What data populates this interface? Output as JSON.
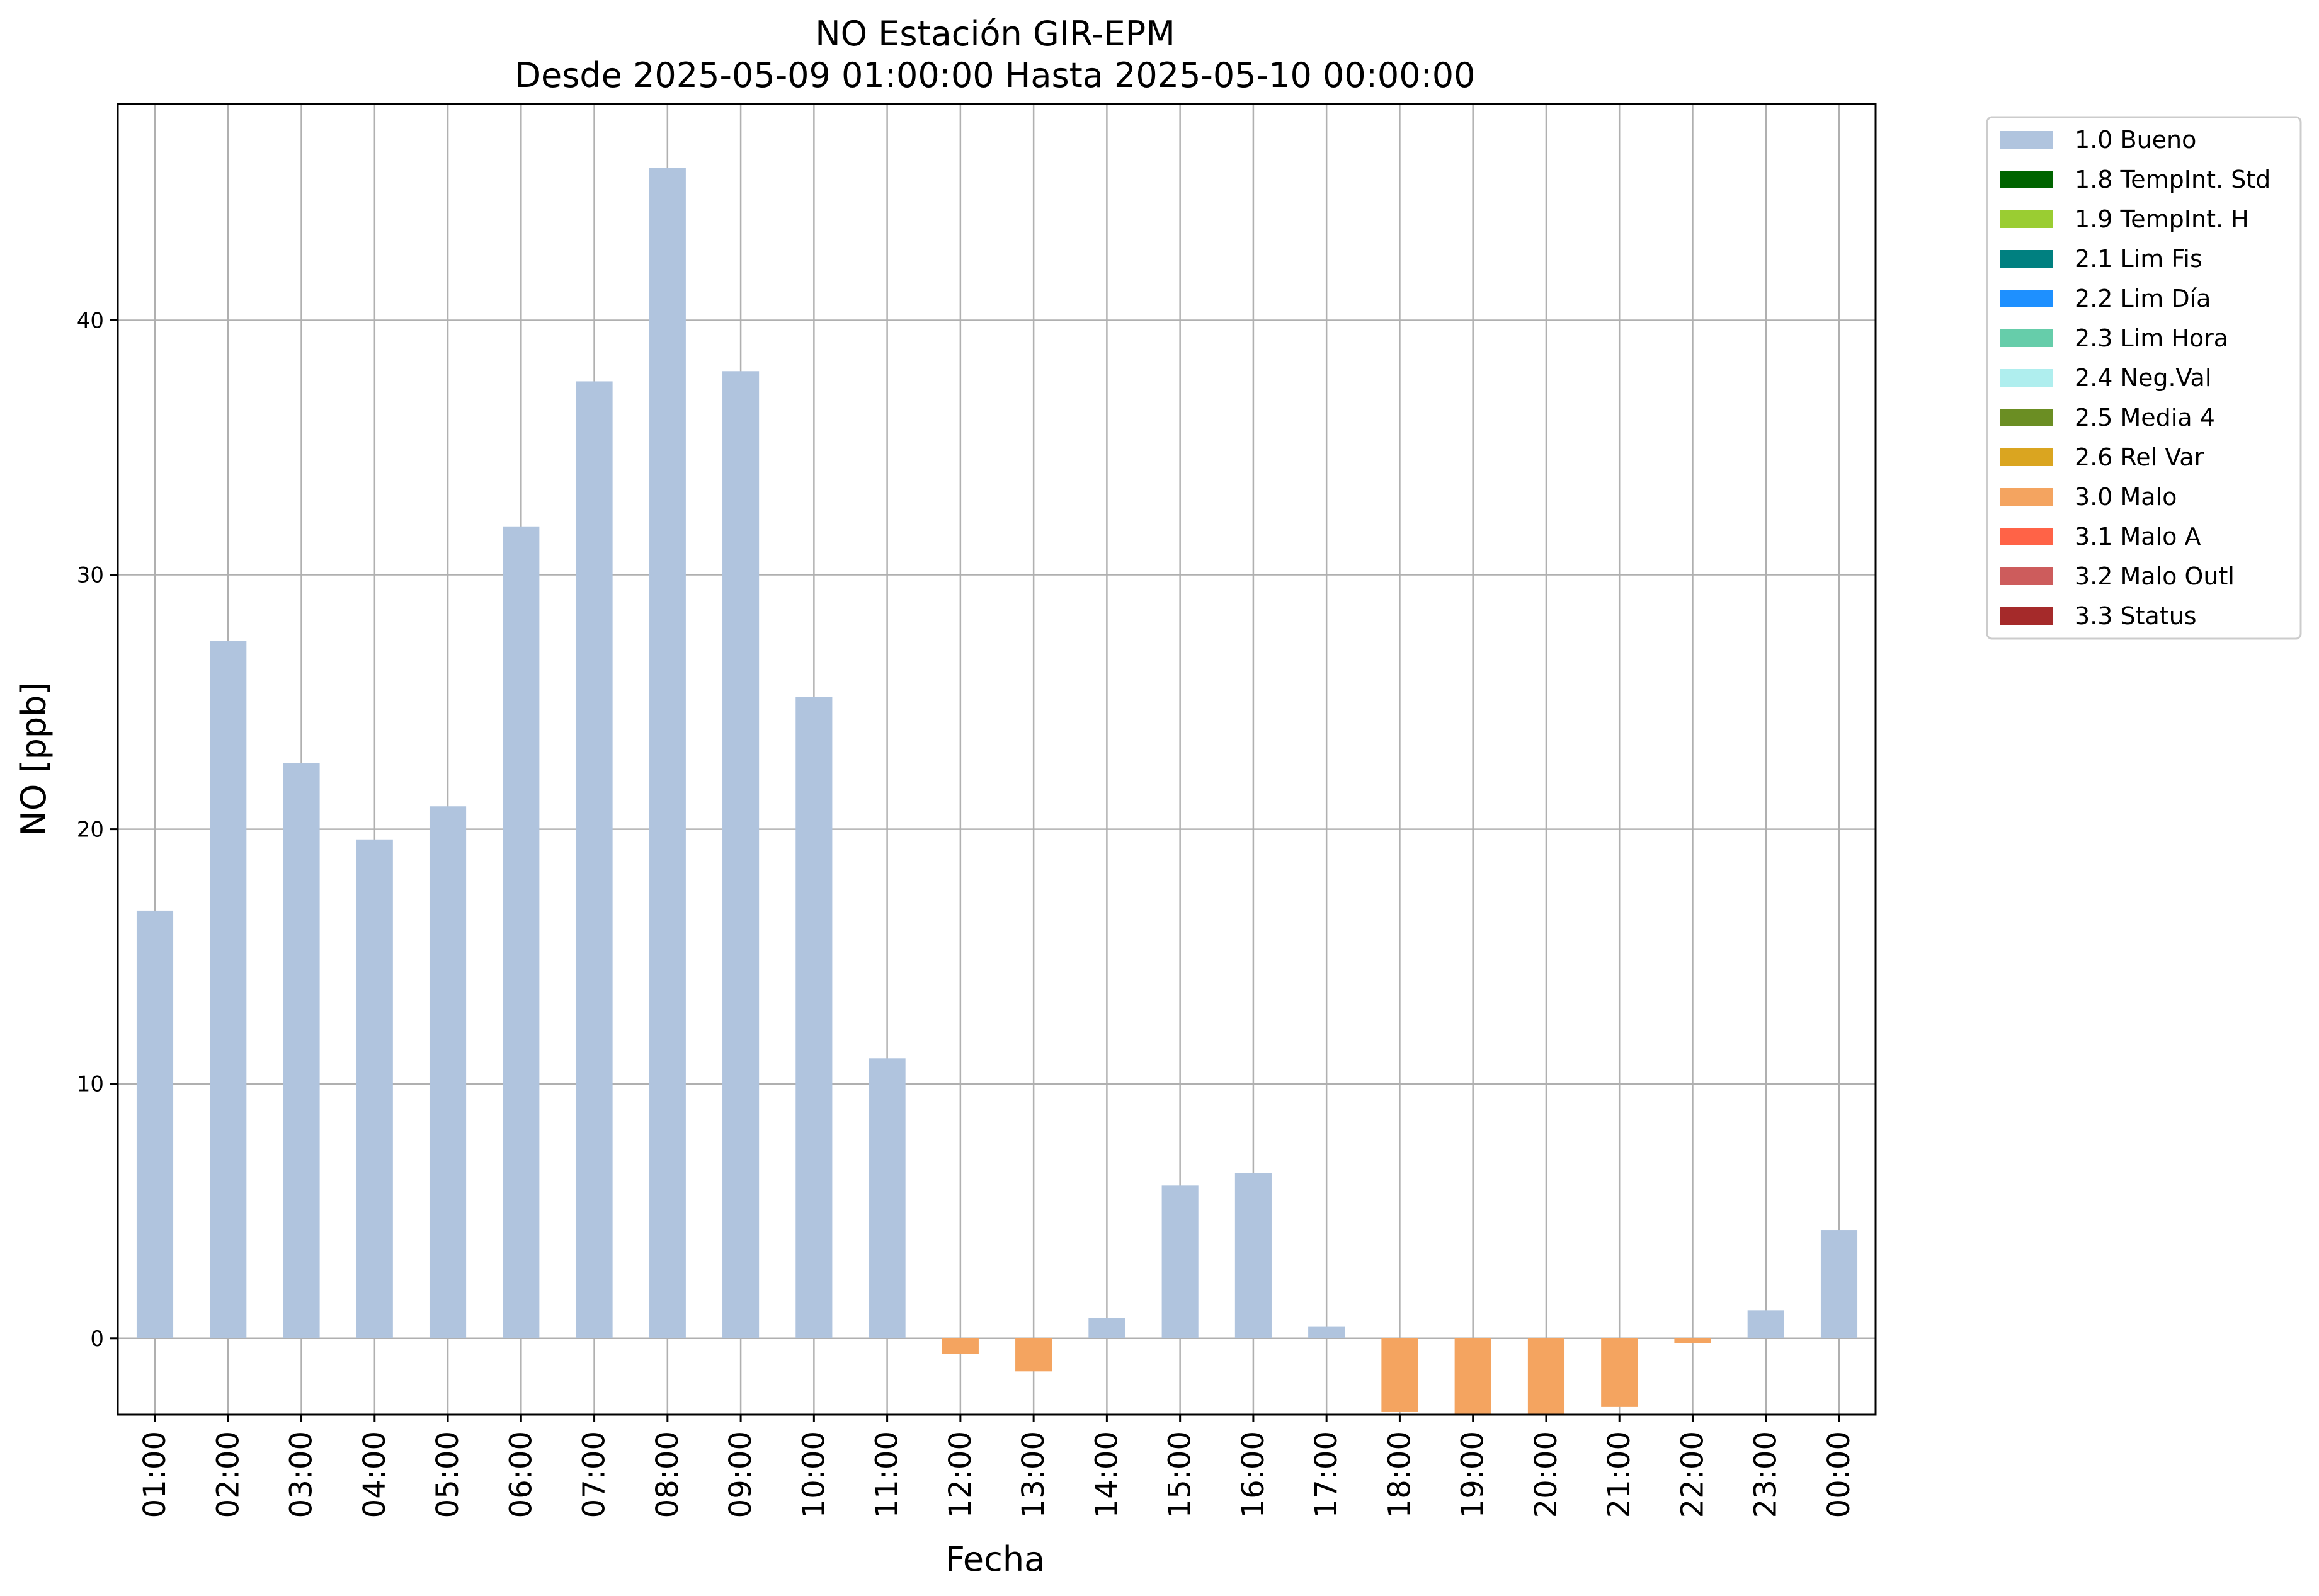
{
  "chart_data": {
    "type": "bar",
    "title": "NO Estación GIR-EPM",
    "subtitle": "Desde 2025-05-09 01:00:00 Hasta 2025-05-10 00:00:00",
    "xlabel": "Fecha",
    "ylabel": "NO [ppb]",
    "ylim": [
      -3,
      48.5
    ],
    "yticks": [
      0,
      10,
      20,
      30,
      40
    ],
    "grid": true,
    "legend_position": "outside-top-right",
    "categories": [
      "01:00",
      "02:00",
      "03:00",
      "04:00",
      "05:00",
      "06:00",
      "07:00",
      "08:00",
      "09:00",
      "10:00",
      "11:00",
      "12:00",
      "13:00",
      "14:00",
      "15:00",
      "16:00",
      "17:00",
      "18:00",
      "19:00",
      "20:00",
      "21:00",
      "22:00",
      "23:00",
      "00:00"
    ],
    "values": [
      16.8,
      27.4,
      22.6,
      19.6,
      20.9,
      31.9,
      37.6,
      46.0,
      38.0,
      25.2,
      11.0,
      -0.6,
      -1.3,
      0.8,
      6.0,
      6.5,
      0.45,
      -2.9,
      -3.0,
      -3.0,
      -2.7,
      -0.2,
      1.1,
      4.25
    ],
    "flags": [
      "1.0 Bueno",
      "1.0 Bueno",
      "1.0 Bueno",
      "1.0 Bueno",
      "1.0 Bueno",
      "1.0 Bueno",
      "1.0 Bueno",
      "1.0 Bueno",
      "1.0 Bueno",
      "1.0 Bueno",
      "1.0 Bueno",
      "3.0 Malo",
      "3.0 Malo",
      "1.0 Bueno",
      "1.0 Bueno",
      "1.0 Bueno",
      "1.0 Bueno",
      "3.0 Malo",
      "3.0 Malo",
      "3.0 Malo",
      "3.0 Malo",
      "3.0 Malo",
      "1.0 Bueno",
      "1.0 Bueno"
    ],
    "legend": [
      {
        "name": "1.0 Bueno",
        "color": "#b0c4de"
      },
      {
        "name": "1.8 TempInt. Std",
        "color": "#006400"
      },
      {
        "name": "1.9 TempInt. H",
        "color": "#9acd32"
      },
      {
        "name": "2.1 Lim Fis",
        "color": "#008080"
      },
      {
        "name": "2.2 Lim Día",
        "color": "#1e90ff"
      },
      {
        "name": "2.3 Lim Hora",
        "color": "#66cdaa"
      },
      {
        "name": "2.4 Neg.Val",
        "color": "#afeeee"
      },
      {
        "name": "2.5 Media 4",
        "color": "#6b8e23"
      },
      {
        "name": "2.6 Rel Var",
        "color": "#daa520"
      },
      {
        "name": "3.0 Malo",
        "color": "#f4a460"
      },
      {
        "name": "3.1 Malo A",
        "color": "#ff6347"
      },
      {
        "name": "3.2 Malo Outl",
        "color": "#cd5c5c"
      },
      {
        "name": "3.3 Status",
        "color": "#a52a2a"
      }
    ]
  }
}
